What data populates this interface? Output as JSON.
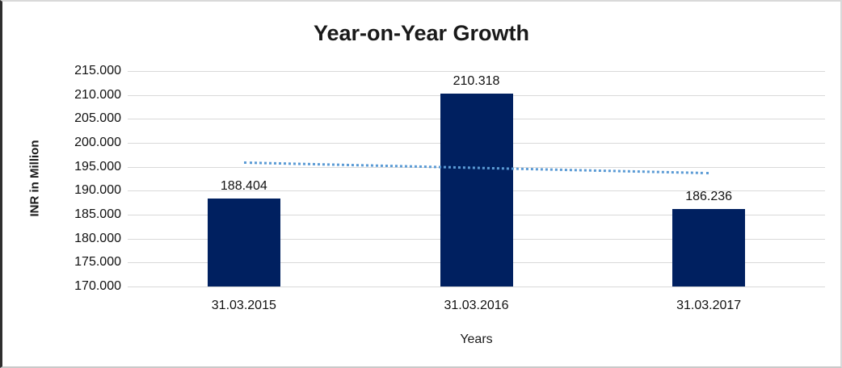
{
  "chart_data": {
    "type": "bar",
    "title": "Year-on-Year Growth",
    "xlabel": "Years",
    "ylabel": "INR in Million",
    "categories": [
      "31.03.2015",
      "31.03.2016",
      "31.03.2017"
    ],
    "values": [
      188.404,
      210.318,
      186.236
    ],
    "value_labels": [
      "188.404",
      "210.318",
      "186.236"
    ],
    "y_tick_values": [
      215,
      210,
      205,
      200,
      195,
      190,
      185,
      180,
      175,
      170
    ],
    "y_tick_labels": [
      "215.000",
      "210.000",
      "205.000",
      "200.000",
      "195.000",
      "190.000",
      "185.000",
      "180.000",
      "175.000",
      "170.000"
    ],
    "ylim": [
      170,
      215
    ],
    "grid": true,
    "legend_position": "none",
    "bar_color": "#002060",
    "gridline_color": "#d9d9d9",
    "trendline": {
      "style": "dotted",
      "color": "#5B9BD5",
      "start_value": 196.1,
      "end_value": 193.9
    }
  }
}
